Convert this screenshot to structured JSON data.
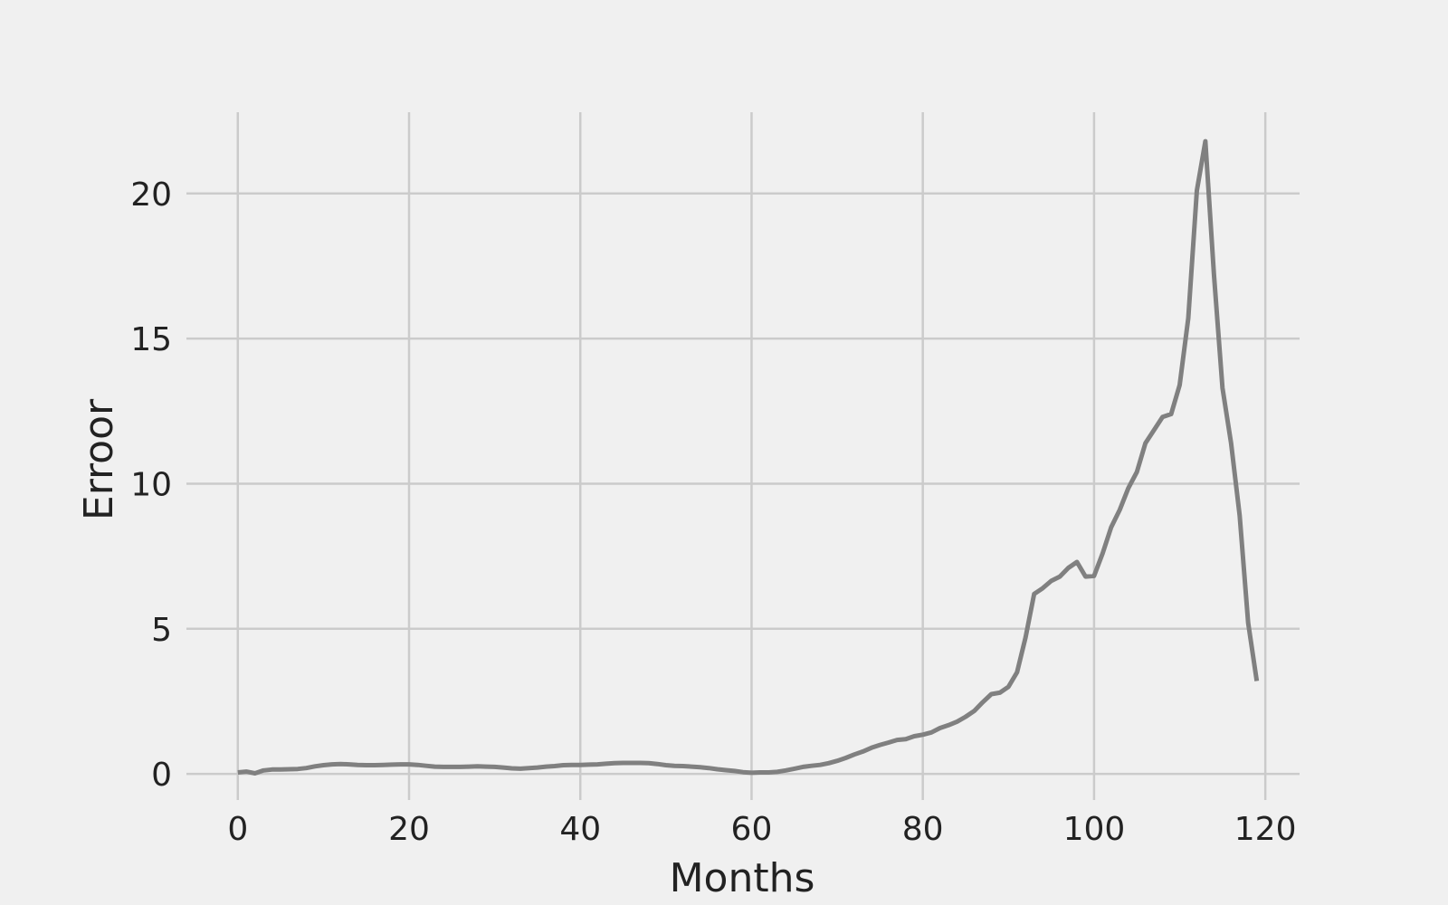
{
  "chart_data": {
    "type": "line",
    "title": "",
    "xlabel": "Months",
    "ylabel": "Erroor",
    "xlim": [
      -6,
      124
    ],
    "ylim": [
      -0.9,
      22.8
    ],
    "xticks": [
      0,
      20,
      40,
      60,
      80,
      100,
      120
    ],
    "yticks": [
      0,
      5,
      10,
      15,
      20
    ],
    "xtick_labels": [
      "0",
      "20",
      "40",
      "60",
      "80",
      "100",
      "120"
    ],
    "ytick_labels": [
      "0",
      "5",
      "10",
      "15",
      "20"
    ],
    "grid": true,
    "legend": "none",
    "colors": {
      "background": "#f0f0f0",
      "grid": "#cbcbcb",
      "line": "#808080",
      "text": "#222222"
    },
    "series": [
      {
        "color": "#808080",
        "x": [
          0,
          1,
          2,
          3,
          4,
          5,
          6,
          7,
          8,
          9,
          10,
          11,
          12,
          13,
          14,
          15,
          16,
          17,
          18,
          19,
          20,
          21,
          22,
          23,
          24,
          25,
          26,
          27,
          28,
          29,
          30,
          31,
          32,
          33,
          34,
          35,
          36,
          37,
          38,
          39,
          40,
          41,
          42,
          43,
          44,
          45,
          46,
          47,
          48,
          49,
          50,
          51,
          52,
          53,
          54,
          55,
          56,
          57,
          58,
          59,
          60,
          61,
          62,
          63,
          64,
          65,
          66,
          67,
          68,
          69,
          70,
          71,
          72,
          73,
          74,
          75,
          76,
          77,
          78,
          79,
          80,
          81,
          82,
          83,
          84,
          85,
          86,
          87,
          88,
          89,
          90,
          91,
          92,
          93,
          94,
          95,
          96,
          97,
          98,
          99,
          100,
          101,
          102,
          103,
          104,
          105,
          106,
          107,
          108,
          109,
          110,
          111,
          112,
          113,
          114,
          115,
          116,
          117,
          118,
          119
        ],
        "y": [
          0.05,
          0.08,
          0.02,
          0.12,
          0.15,
          0.15,
          0.16,
          0.17,
          0.2,
          0.26,
          0.3,
          0.33,
          0.34,
          0.33,
          0.31,
          0.3,
          0.3,
          0.31,
          0.32,
          0.33,
          0.33,
          0.31,
          0.28,
          0.25,
          0.24,
          0.24,
          0.24,
          0.25,
          0.26,
          0.25,
          0.24,
          0.22,
          0.19,
          0.18,
          0.2,
          0.22,
          0.25,
          0.27,
          0.3,
          0.31,
          0.31,
          0.32,
          0.33,
          0.35,
          0.37,
          0.38,
          0.38,
          0.38,
          0.37,
          0.34,
          0.3,
          0.28,
          0.27,
          0.25,
          0.23,
          0.2,
          0.16,
          0.13,
          0.1,
          0.06,
          0.04,
          0.05,
          0.05,
          0.07,
          0.12,
          0.18,
          0.24,
          0.28,
          0.31,
          0.37,
          0.45,
          0.55,
          0.67,
          0.77,
          0.9,
          1.0,
          1.08,
          1.17,
          1.2,
          1.3,
          1.35,
          1.43,
          1.58,
          1.68,
          1.8,
          1.97,
          2.17,
          2.47,
          2.75,
          2.8,
          3.0,
          3.5,
          4.7,
          6.2,
          6.4,
          6.65,
          6.8,
          7.1,
          7.3,
          6.8,
          6.82,
          7.6,
          8.5,
          9.1,
          9.85,
          10.4,
          11.4,
          11.85,
          12.3,
          12.4,
          13.4,
          15.7,
          20.1,
          21.8,
          17.2,
          13.3,
          11.4,
          8.9,
          5.2,
          3.2
        ]
      }
    ]
  }
}
